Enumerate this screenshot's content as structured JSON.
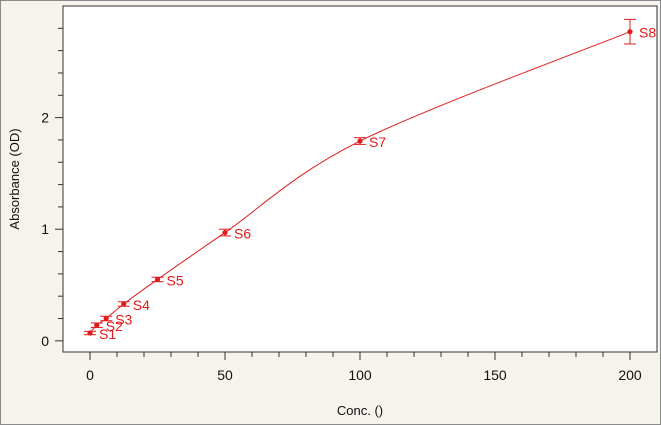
{
  "chart_data": {
    "type": "scatter",
    "xlabel": "Conc. ()",
    "ylabel": "Absorbance (OD)",
    "xlim": [
      -10,
      210
    ],
    "ylim": [
      -0.1,
      3.0
    ],
    "x_ticks": [
      0,
      50,
      100,
      150,
      200
    ],
    "y_ticks": [
      0,
      1,
      2
    ],
    "grid": false,
    "colors": {
      "series": "#e01b1b",
      "background": "#f5f3ec",
      "plot": "#ffffff"
    },
    "fit_curve": true,
    "series": [
      {
        "points": [
          {
            "label": "S1",
            "x": 0,
            "y": 0.07,
            "err": 0.015
          },
          {
            "label": "S2",
            "x": 2.5,
            "y": 0.14,
            "err": 0.02
          },
          {
            "label": "S3",
            "x": 6,
            "y": 0.2,
            "err": 0.02
          },
          {
            "label": "S4",
            "x": 12.5,
            "y": 0.33,
            "err": 0.02
          },
          {
            "label": "S5",
            "x": 25,
            "y": 0.55,
            "err": 0.02
          },
          {
            "label": "S6",
            "x": 50,
            "y": 0.97,
            "err": 0.03
          },
          {
            "label": "S7",
            "x": 100,
            "y": 1.79,
            "err": 0.03
          },
          {
            "label": "S8",
            "x": 200,
            "y": 2.77,
            "err": 0.11
          }
        ]
      }
    ]
  }
}
